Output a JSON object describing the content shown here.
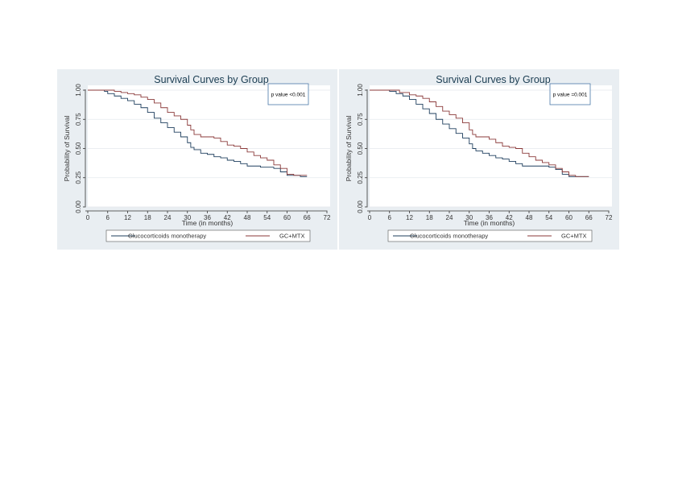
{
  "chart_data": [
    {
      "type": "line",
      "subtype": "kaplan-meier step",
      "title": "Survival Curves by Group",
      "xlabel": "Time (in months)",
      "ylabel": "Probability of Survival",
      "xlim": [
        0,
        72
      ],
      "ylim": [
        0,
        1
      ],
      "xticks": [
        "0",
        "6",
        "12",
        "18",
        "24",
        "30",
        "36",
        "42",
        "48",
        "54",
        "60",
        "66",
        "72"
      ],
      "yticks": [
        "0.00",
        "0.25",
        "0.50",
        "0.75",
        "1.00"
      ],
      "grid": "horizontal",
      "legend_position": "bottom",
      "annotation": "p value <0.001",
      "series": [
        {
          "name": "Glucocorticoids monotherapy",
          "color": "#1f3f5e",
          "points": [
            [
              0,
              1.0
            ],
            [
              5,
              0.99
            ],
            [
              6,
              0.97
            ],
            [
              8,
              0.95
            ],
            [
              10,
              0.93
            ],
            [
              12,
              0.91
            ],
            [
              14,
              0.88
            ],
            [
              16,
              0.85
            ],
            [
              18,
              0.81
            ],
            [
              20,
              0.76
            ],
            [
              22,
              0.72
            ],
            [
              24,
              0.68
            ],
            [
              26,
              0.64
            ],
            [
              28,
              0.6
            ],
            [
              30,
              0.55
            ],
            [
              31,
              0.51
            ],
            [
              32,
              0.49
            ],
            [
              34,
              0.46
            ],
            [
              36,
              0.45
            ],
            [
              38,
              0.43
            ],
            [
              40,
              0.42
            ],
            [
              42,
              0.4
            ],
            [
              44,
              0.39
            ],
            [
              46,
              0.37
            ],
            [
              48,
              0.35
            ],
            [
              52,
              0.34
            ],
            [
              54,
              0.34
            ],
            [
              56,
              0.33
            ],
            [
              58,
              0.3
            ],
            [
              60,
              0.27
            ],
            [
              64,
              0.26
            ],
            [
              66,
              0.26
            ]
          ]
        },
        {
          "name": "GC+MTX",
          "color": "#8b3a3a",
          "points": [
            [
              0,
              1.0
            ],
            [
              6,
              1.0
            ],
            [
              8,
              0.99
            ],
            [
              10,
              0.98
            ],
            [
              12,
              0.97
            ],
            [
              14,
              0.96
            ],
            [
              16,
              0.94
            ],
            [
              18,
              0.92
            ],
            [
              20,
              0.89
            ],
            [
              22,
              0.85
            ],
            [
              24,
              0.81
            ],
            [
              26,
              0.78
            ],
            [
              28,
              0.75
            ],
            [
              30,
              0.7
            ],
            [
              31,
              0.66
            ],
            [
              32,
              0.62
            ],
            [
              34,
              0.6
            ],
            [
              38,
              0.59
            ],
            [
              40,
              0.56
            ],
            [
              42,
              0.53
            ],
            [
              44,
              0.52
            ],
            [
              46,
              0.5
            ],
            [
              48,
              0.47
            ],
            [
              50,
              0.44
            ],
            [
              52,
              0.42
            ],
            [
              54,
              0.4
            ],
            [
              56,
              0.36
            ],
            [
              58,
              0.33
            ],
            [
              60,
              0.28
            ],
            [
              62,
              0.27
            ],
            [
              64,
              0.27
            ],
            [
              66,
              0.27
            ]
          ]
        }
      ]
    },
    {
      "type": "line",
      "subtype": "kaplan-meier step",
      "title": "Survival Curves by Group",
      "xlabel": "Time (in months)",
      "ylabel": "Probability of Survival",
      "xlim": [
        0,
        72
      ],
      "ylim": [
        0,
        1
      ],
      "xticks": [
        "0",
        "6",
        "12",
        "18",
        "24",
        "30",
        "36",
        "42",
        "48",
        "54",
        "60",
        "66",
        "72"
      ],
      "yticks": [
        "0.00",
        "0.25",
        "0.50",
        "0.75",
        "1.00"
      ],
      "grid": "horizontal",
      "legend_position": "bottom",
      "annotation": "p value =0.001",
      "series": [
        {
          "name": "Glucocorticoids monotherapy",
          "color": "#1f3f5e",
          "points": [
            [
              0,
              1.0
            ],
            [
              6,
              0.99
            ],
            [
              8,
              0.97
            ],
            [
              10,
              0.95
            ],
            [
              12,
              0.92
            ],
            [
              14,
              0.88
            ],
            [
              16,
              0.84
            ],
            [
              18,
              0.8
            ],
            [
              20,
              0.75
            ],
            [
              22,
              0.71
            ],
            [
              24,
              0.67
            ],
            [
              26,
              0.63
            ],
            [
              28,
              0.59
            ],
            [
              30,
              0.54
            ],
            [
              31,
              0.5
            ],
            [
              32,
              0.48
            ],
            [
              34,
              0.46
            ],
            [
              36,
              0.44
            ],
            [
              38,
              0.42
            ],
            [
              40,
              0.41
            ],
            [
              42,
              0.39
            ],
            [
              44,
              0.37
            ],
            [
              46,
              0.35
            ],
            [
              48,
              0.35
            ],
            [
              54,
              0.34
            ],
            [
              56,
              0.32
            ],
            [
              58,
              0.28
            ],
            [
              60,
              0.26
            ],
            [
              66,
              0.26
            ]
          ]
        },
        {
          "name": "GC+MTX",
          "color": "#8b3a3a",
          "points": [
            [
              0,
              1.0
            ],
            [
              7,
              1.0
            ],
            [
              9,
              0.98
            ],
            [
              12,
              0.96
            ],
            [
              14,
              0.95
            ],
            [
              16,
              0.93
            ],
            [
              18,
              0.9
            ],
            [
              20,
              0.86
            ],
            [
              22,
              0.82
            ],
            [
              24,
              0.79
            ],
            [
              26,
              0.76
            ],
            [
              28,
              0.72
            ],
            [
              30,
              0.66
            ],
            [
              31,
              0.62
            ],
            [
              32,
              0.6
            ],
            [
              36,
              0.58
            ],
            [
              38,
              0.55
            ],
            [
              40,
              0.52
            ],
            [
              42,
              0.51
            ],
            [
              44,
              0.5
            ],
            [
              46,
              0.46
            ],
            [
              48,
              0.43
            ],
            [
              50,
              0.4
            ],
            [
              52,
              0.38
            ],
            [
              54,
              0.36
            ],
            [
              56,
              0.33
            ],
            [
              58,
              0.3
            ],
            [
              60,
              0.27
            ],
            [
              62,
              0.26
            ],
            [
              66,
              0.26
            ]
          ]
        }
      ]
    }
  ]
}
